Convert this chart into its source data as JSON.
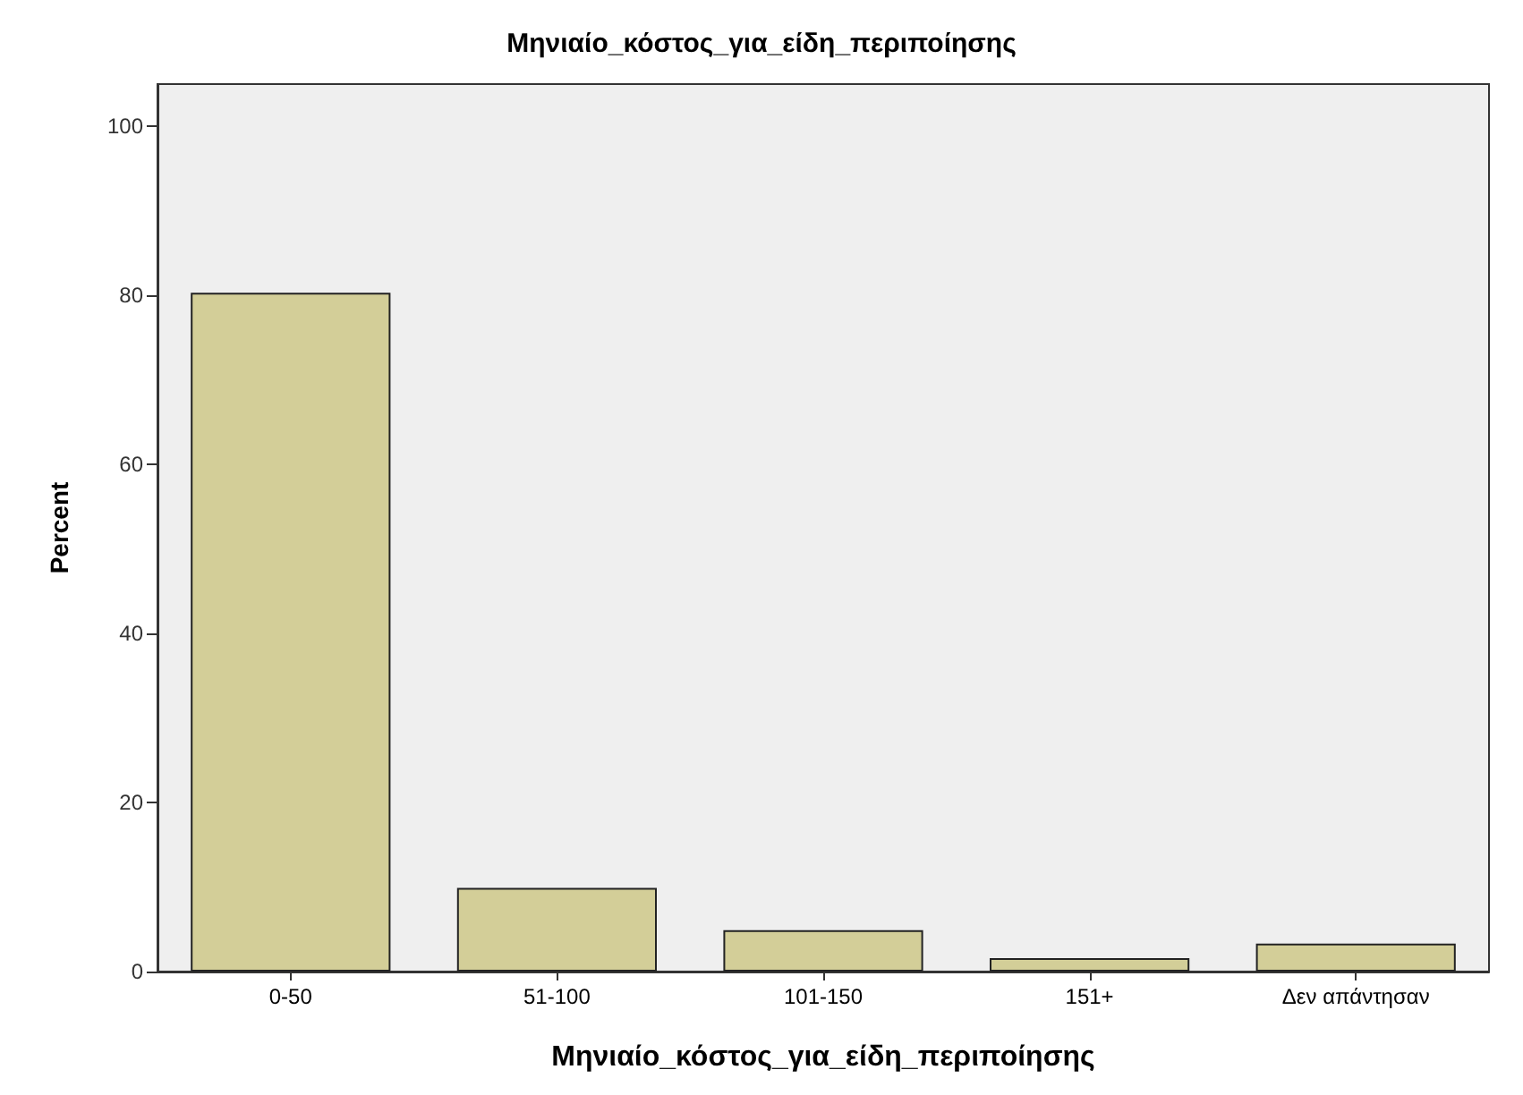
{
  "chart_data": {
    "type": "bar",
    "title": "Μηνιαίο_κόστος_για_είδη_περιποίησης",
    "xlabel": "Μηνιαίο_κόστος_για_είδη_περιποίησης",
    "ylabel": "Percent",
    "categories": [
      "0-50",
      "51-100",
      "101-150",
      "151+",
      "Δεν απάντησαν"
    ],
    "values": [
      80.3,
      9.9,
      4.9,
      1.6,
      3.3
    ],
    "color": "#d3ce98",
    "ylim": [
      0,
      105
    ],
    "yticks": [
      0,
      20,
      40,
      60,
      80,
      100
    ],
    "grid": false
  }
}
